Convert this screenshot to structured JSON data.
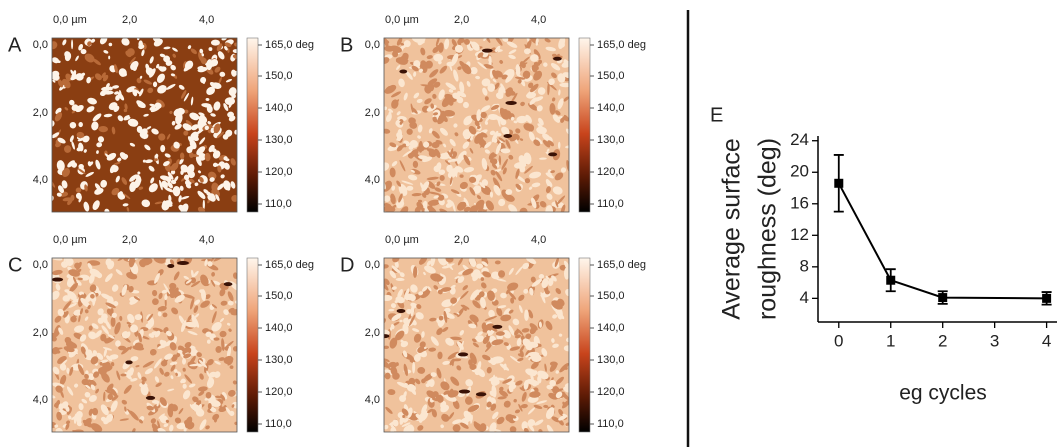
{
  "panels": [
    {
      "label": "A",
      "top_ticks": [
        "0,0 µm",
        "2,0",
        "4,0"
      ],
      "left_ticks": [
        "0,0",
        "2,0",
        "4,0"
      ]
    },
    {
      "label": "B",
      "top_ticks": [
        "0,0 µm",
        "2,0",
        "4,0"
      ],
      "left_ticks": [
        "0,0",
        "2,0",
        "4,0"
      ]
    },
    {
      "label": "C",
      "top_ticks": [
        "0,0 µm",
        "2,0",
        "4,0"
      ],
      "left_ticks": [
        "0,0",
        "2,0",
        "4,0"
      ]
    },
    {
      "label": "D",
      "top_ticks": [
        "0,0 µm",
        "2,0",
        "4,0"
      ],
      "left_ticks": [
        "0,0",
        "2,0",
        "4,0"
      ]
    }
  ],
  "colorbar_labels": [
    "165,0 deg",
    "150,0",
    "140,0",
    "130,0",
    "120,0",
    "110,0"
  ],
  "chart_data": {
    "type": "errorbar-line",
    "panel_label": "E",
    "ylabel": [
      "Average surface",
      "roughness (deg)"
    ],
    "xlabel": "eg cycles",
    "x": [
      0,
      1,
      2,
      4
    ],
    "values": [
      18.6,
      6.3,
      4.1,
      4.0
    ],
    "errors": [
      3.6,
      1.4,
      0.8,
      0.8
    ],
    "color": "#000000",
    "xlim": [
      -0.4,
      4.2
    ],
    "xticks": [
      0,
      1,
      2,
      3,
      4
    ],
    "ylim": [
      1,
      24.6
    ],
    "yticks": [
      4,
      8,
      12,
      16,
      20,
      24
    ]
  }
}
